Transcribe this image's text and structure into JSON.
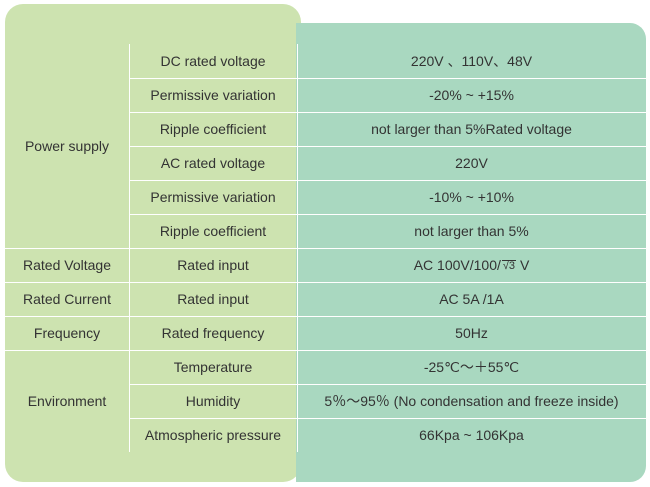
{
  "groups": {
    "power_supply": "Power supply",
    "rated_voltage": "Rated Voltage",
    "rated_current": "Rated Current",
    "frequency": "Frequency",
    "environment": "Environment"
  },
  "rows": [
    {
      "param": "DC rated voltage",
      "value": "220V 、110V、48V"
    },
    {
      "param": "Permissive variation",
      "value": "-20% ~ +15%"
    },
    {
      "param": "Ripple coefficient",
      "value": "not larger than 5%Rated voltage"
    },
    {
      "param": "AC rated voltage",
      "value": "220V"
    },
    {
      "param": "Permissive variation",
      "value": "-10% ~ +10%"
    },
    {
      "param": "Ripple coefficient",
      "value": "not larger than 5%"
    },
    {
      "param": "Rated input",
      "value_prefix": "AC 100V/100/",
      "value_sqrt": "3",
      "value_suffix": "V"
    },
    {
      "param": "Rated input",
      "value": "AC 5A /1A"
    },
    {
      "param": "Rated frequency",
      "value": "50Hz"
    },
    {
      "param": "Temperature",
      "value": "-25℃～＋55℃"
    },
    {
      "param": "Humidity",
      "value": "5％～95％ (No condensation and freeze inside)"
    },
    {
      "param": "Atmospheric pressure",
      "value": "66Kpa ~ 106Kpa"
    }
  ]
}
